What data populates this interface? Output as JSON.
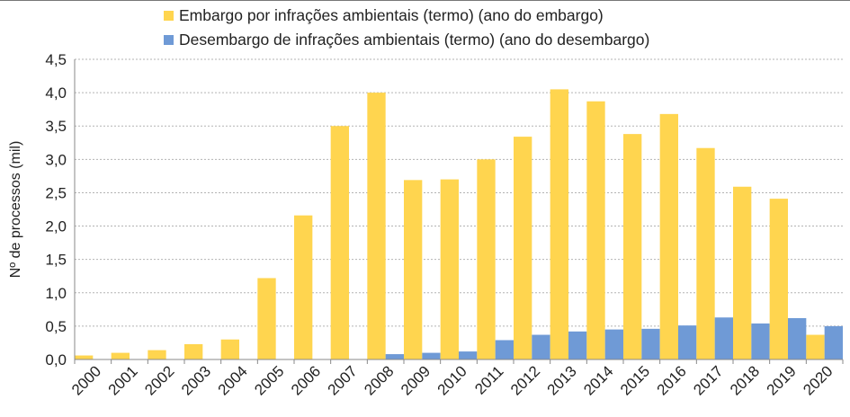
{
  "chart_data": {
    "type": "bar",
    "title": "",
    "xlabel": "",
    "ylabel": "Nº de processos (mil)",
    "ylim": [
      0,
      4.5
    ],
    "yticks": [
      "0,0",
      "0,5",
      "1,0",
      "1,5",
      "2,0",
      "2,5",
      "3,0",
      "3,5",
      "4,0",
      "4,5"
    ],
    "grid": true,
    "legend_position": "top",
    "categories": [
      "2000",
      "2001",
      "2002",
      "2003",
      "2004",
      "2005",
      "2006",
      "2007",
      "2008",
      "2009",
      "2010",
      "2011",
      "2012",
      "2013",
      "2014",
      "2015",
      "2016",
      "2017",
      "2018",
      "2019",
      "2020"
    ],
    "series": [
      {
        "name": "Embargo por infrações ambientais (termo) (ano do embargo)",
        "color": "#FFD54F",
        "values": [
          0.06,
          0.1,
          0.14,
          0.23,
          0.3,
          1.22,
          2.16,
          3.5,
          4.0,
          2.69,
          2.7,
          3.0,
          3.34,
          4.05,
          3.87,
          3.38,
          3.68,
          3.17,
          2.59,
          2.41,
          0.37
        ]
      },
      {
        "name": "Desembargo de infrações ambientais (termo) (ano do desembargo)",
        "color": "#6F9AD6",
        "values": [
          0,
          0,
          0,
          0,
          0,
          0,
          0,
          0,
          0.08,
          0.1,
          0.12,
          0.29,
          0.37,
          0.42,
          0.45,
          0.46,
          0.51,
          0.63,
          0.54,
          0.62,
          0.5
        ]
      }
    ]
  }
}
